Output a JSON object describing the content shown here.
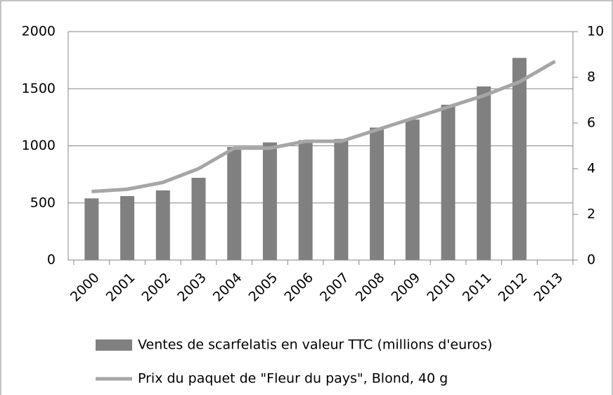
{
  "chart_data": {
    "type": "bar-line",
    "categories": [
      "2000",
      "2001",
      "2002",
      "2003",
      "2004",
      "2005",
      "2006",
      "2007",
      "2008",
      "2009",
      "2010",
      "2011",
      "2012",
      "2013"
    ],
    "series": [
      {
        "name": "Ventes de scarfelatis en valeur TTC (millions d'euros)",
        "type": "bar",
        "color": "#808080",
        "values": [
          540,
          560,
          610,
          720,
          990,
          1030,
          1050,
          1060,
          1160,
          1230,
          1360,
          1520,
          1770,
          null
        ]
      },
      {
        "name": "Prix du paquet de \"Fleur du pays\", Blond, 40 g",
        "type": "line",
        "color": "#a6a6a6",
        "axis": "y2",
        "values": [
          3.0,
          3.1,
          3.4,
          4.0,
          4.9,
          4.9,
          5.2,
          5.2,
          5.7,
          6.2,
          6.7,
          7.2,
          7.8,
          8.7
        ]
      }
    ],
    "ylim": [
      0,
      2000
    ],
    "yticks": [
      0,
      500,
      1000,
      1500,
      2000
    ],
    "y2lim": [
      0,
      10
    ],
    "y2ticks": [
      0,
      2,
      4,
      6,
      8,
      10
    ],
    "grid": true,
    "legend": "bottom"
  }
}
